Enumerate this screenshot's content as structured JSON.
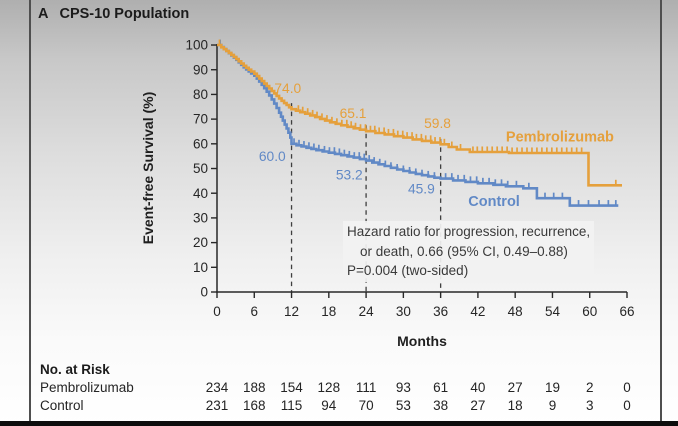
{
  "panel": {
    "letter": "A",
    "title": "CPS-10 Population"
  },
  "chart_data": {
    "type": "line",
    "subtype": "kaplan-meier-step",
    "title": "CPS-10 Population",
    "xlabel": "Months",
    "ylabel": "Event-free Survival (%)",
    "xlim": [
      0,
      66
    ],
    "ylim": [
      0,
      100
    ],
    "xticks": [
      0,
      6,
      12,
      18,
      24,
      30,
      36,
      42,
      48,
      54,
      60,
      66
    ],
    "yticks": [
      100,
      90,
      80,
      70,
      60,
      50,
      40,
      30,
      20,
      10,
      0
    ],
    "grid": false,
    "axis_color": "#282828",
    "series": [
      {
        "name": "Control",
        "color": "#6189C6",
        "label_anchor": {
          "month": 44.6,
          "value": 36.8
        },
        "points": [
          [
            0,
            100
          ],
          [
            0.7,
            99.2
          ],
          [
            1.1,
            98.4
          ],
          [
            1.5,
            97.6
          ],
          [
            1.9,
            96.7
          ],
          [
            2.3,
            95.8
          ],
          [
            2.7,
            94.9
          ],
          [
            3.1,
            94
          ],
          [
            3.5,
            93
          ],
          [
            3.9,
            92
          ],
          [
            4.3,
            91
          ],
          [
            4.7,
            90.1
          ],
          [
            5.1,
            89.3
          ],
          [
            5.5,
            88.5
          ],
          [
            6,
            87.6
          ],
          [
            6.4,
            86.4
          ],
          [
            6.8,
            85.2
          ],
          [
            7.2,
            83.9
          ],
          [
            7.6,
            82.5
          ],
          [
            8,
            81.1
          ],
          [
            8.4,
            79.6
          ],
          [
            8.8,
            78
          ],
          [
            9.2,
            76.3
          ],
          [
            9.6,
            74.5
          ],
          [
            10,
            72.6
          ],
          [
            10.3,
            71
          ],
          [
            10.6,
            69.4
          ],
          [
            10.9,
            67.8
          ],
          [
            11.2,
            66.2
          ],
          [
            11.5,
            64.5
          ],
          [
            11.8,
            62.5
          ],
          [
            12,
            60
          ],
          [
            12.8,
            59.4
          ],
          [
            13.6,
            58.9
          ],
          [
            14.4,
            58.4
          ],
          [
            15.2,
            57.9
          ],
          [
            16,
            57.4
          ],
          [
            17,
            56.9
          ],
          [
            18,
            56.4
          ],
          [
            19,
            55.9
          ],
          [
            20,
            55.4
          ],
          [
            21,
            54.9
          ],
          [
            22,
            54.4
          ],
          [
            23,
            53.8
          ],
          [
            24,
            53.2
          ],
          [
            25,
            52.4
          ],
          [
            26,
            51.7
          ],
          [
            27,
            51
          ],
          [
            28,
            50.3
          ],
          [
            29,
            49.6
          ],
          [
            30,
            49
          ],
          [
            31,
            48.4
          ],
          [
            32,
            47.8
          ],
          [
            33,
            47.3
          ],
          [
            34,
            46.8
          ],
          [
            35,
            46.3
          ],
          [
            36,
            45.9
          ],
          [
            38,
            45.2
          ],
          [
            40,
            44.6
          ],
          [
            42,
            44
          ],
          [
            44.5,
            43.4
          ],
          [
            46.5,
            42.8
          ],
          [
            49.3,
            42
          ],
          [
            51.5,
            38
          ],
          [
            56.8,
            35
          ],
          [
            64.6,
            35
          ]
        ],
        "censor_months": [
          0.5,
          12.4,
          13.2,
          14,
          14.8,
          15.6,
          16.4,
          17.3,
          18.1,
          18.9,
          19.7,
          20.5,
          21.3,
          22.1,
          22.9,
          23.7,
          24.5,
          25.3,
          26.2,
          27.1,
          28,
          29,
          30,
          31,
          32,
          33,
          34,
          35,
          36.8,
          37.8,
          38.8,
          39.8,
          40.8,
          41.8,
          42.8,
          43.8,
          44.8,
          45.8,
          46.8,
          48.2,
          50.2,
          52.8,
          54.2,
          55.6,
          58.2,
          59.8,
          61.5,
          63,
          64.2
        ]
      },
      {
        "name": "Pembrolizumab",
        "color": "#E5A03C",
        "label_anchor": {
          "month": 55.2,
          "value": 63
        },
        "points": [
          [
            0,
            100
          ],
          [
            0.7,
            99.1
          ],
          [
            1.1,
            98.3
          ],
          [
            1.5,
            97.6
          ],
          [
            1.9,
            96.8
          ],
          [
            2.3,
            96
          ],
          [
            2.7,
            95.2
          ],
          [
            3.1,
            94.3
          ],
          [
            3.5,
            93.4
          ],
          [
            3.9,
            92.5
          ],
          [
            4.3,
            91.6
          ],
          [
            4.7,
            90.8
          ],
          [
            5.1,
            90
          ],
          [
            5.5,
            89.3
          ],
          [
            6,
            88.4
          ],
          [
            6.4,
            87.4
          ],
          [
            6.8,
            86.4
          ],
          [
            7.2,
            85.4
          ],
          [
            7.6,
            84.4
          ],
          [
            8,
            83.4
          ],
          [
            8.4,
            82.4
          ],
          [
            8.8,
            81.4
          ],
          [
            9.2,
            80.4
          ],
          [
            9.6,
            79.4
          ],
          [
            10,
            78.4
          ],
          [
            10.4,
            77.4
          ],
          [
            10.8,
            76.5
          ],
          [
            11.2,
            75.7
          ],
          [
            11.6,
            74.8
          ],
          [
            12,
            74
          ],
          [
            12.7,
            73.4
          ],
          [
            13.4,
            72.8
          ],
          [
            14.2,
            72.2
          ],
          [
            15,
            71.5
          ],
          [
            15.8,
            70.8
          ],
          [
            16.6,
            70.1
          ],
          [
            17.4,
            69.4
          ],
          [
            18.2,
            68.7
          ],
          [
            19.1,
            68.1
          ],
          [
            20,
            67.5
          ],
          [
            21,
            66.9
          ],
          [
            22,
            66.3
          ],
          [
            23,
            65.7
          ],
          [
            24,
            65.1
          ],
          [
            25.5,
            64.4
          ],
          [
            27,
            63.8
          ],
          [
            28.5,
            63.1
          ],
          [
            30,
            62.5
          ],
          [
            31.5,
            61.8
          ],
          [
            33,
            61.2
          ],
          [
            34.5,
            60.5
          ],
          [
            36,
            59.8
          ],
          [
            37.3,
            58.7
          ],
          [
            38.6,
            57.7
          ],
          [
            40.7,
            56.7
          ],
          [
            47,
            56.3
          ],
          [
            59.8,
            43.2
          ],
          [
            65.2,
            43.2
          ]
        ],
        "censor_months": [
          0.4,
          13.1,
          13.8,
          14.6,
          15.4,
          16.1,
          16.9,
          17.7,
          18.5,
          19.3,
          20.1,
          20.9,
          21.6,
          22.3,
          23.1,
          23.9,
          24.7,
          25.4,
          26.1,
          26.9,
          27.6,
          28.4,
          29.1,
          29.9,
          30.6,
          31.4,
          32.1,
          32.9,
          33.6,
          34.4,
          35.1,
          35.9,
          36.6,
          37.8,
          39.2,
          41.2,
          41.9,
          42.7,
          43.5,
          44.3,
          45.1,
          45.9,
          46.7,
          47.5,
          48.3,
          49.1,
          49.9,
          50.7,
          51.5,
          52.3,
          53.1,
          53.9,
          54.7,
          55.5,
          56.3,
          57.1,
          57.9,
          58.7,
          64.2
        ]
      }
    ],
    "reference_lines": [
      {
        "month": 12,
        "top_value": 76.5
      },
      {
        "month": 24,
        "top_value": 67.5
      },
      {
        "month": 36,
        "top_value": 62
      }
    ],
    "annotations": [
      {
        "text": "74.0",
        "series": "Pembrolizumab",
        "month": 11.4,
        "value": 82.5
      },
      {
        "text": "65.1",
        "series": "Pembrolizumab",
        "month": 21.9,
        "value": 72.5
      },
      {
        "text": "59.8",
        "series": "Pembrolizumab",
        "month": 35.5,
        "value": 68.5
      },
      {
        "text": "60.0",
        "series": "Control",
        "month": 8.9,
        "value": 55
      },
      {
        "text": "53.2",
        "series": "Control",
        "month": 21.3,
        "value": 47.5
      },
      {
        "text": "45.9",
        "series": "Control",
        "month": 32.9,
        "value": 42
      }
    ],
    "stats_note": [
      "Hazard ratio for progression, recurrence,",
      "or death, 0.66 (95% CI, 0.49–0.88)",
      "P=0.004 (two-sided)"
    ],
    "legend_position": "on-curve"
  },
  "risk_table": {
    "title": "No. at Risk",
    "rows": [
      {
        "label": "Pembrolizumab",
        "values": [
          234,
          188,
          154,
          128,
          111,
          93,
          61,
          40,
          27,
          19,
          2,
          0
        ]
      },
      {
        "label": "Control",
        "values": [
          231,
          168,
          115,
          94,
          70,
          53,
          38,
          27,
          18,
          9,
          3,
          0
        ]
      }
    ]
  },
  "colors": {
    "pembrolizumab": "#E5A03C",
    "control": "#6189C6",
    "axis": "#282828",
    "dashed_line": "#3f3f3f",
    "frame": "#4f4f4f"
  }
}
